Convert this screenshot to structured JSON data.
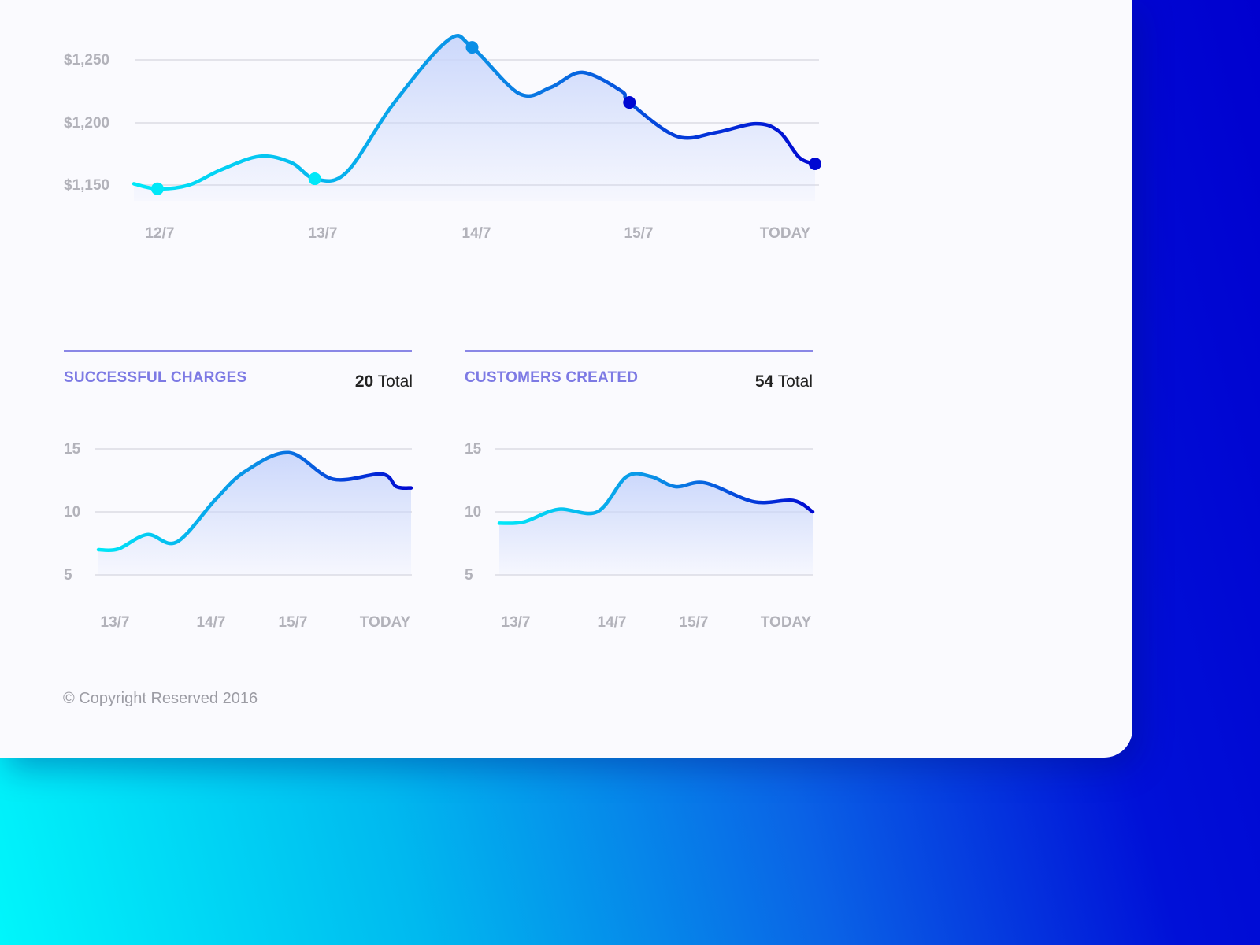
{
  "colors": {
    "line_start": "#00e8f8",
    "line_mid": "#0a8ee6",
    "line_end": "#0008d2",
    "area_fill": "#c9d6fb",
    "gridline": "#e3e3ea",
    "panel_title": "#7d7ae4",
    "page_gradient_start": "#00f6fb",
    "page_gradient_end": "#0000cf"
  },
  "main_chart": {
    "y_tick_labels": [
      "$1,250",
      "$1,200",
      "$1,150"
    ]
  },
  "panels": [
    {
      "title": "SUCCESSFUL CHARGES",
      "total_value": "20",
      "total_label": "Total"
    },
    {
      "title": "CUSTOMERS CREATED",
      "total_value": "54",
      "total_label": "Total"
    }
  ],
  "footer": {
    "copyright": "© Copyright Reserved 2016"
  },
  "chart_data": [
    {
      "type": "area",
      "title": "",
      "xlabel": "",
      "ylabel": "",
      "x_ticks": [
        {
          "x": 0,
          "label": "12/7"
        },
        {
          "x": 1,
          "label": "13/7"
        },
        {
          "x": 2,
          "label": "14/7"
        },
        {
          "x": 3,
          "label": "15/7"
        },
        {
          "x": 4,
          "label": "TODAY"
        }
      ],
      "y_ticks": [
        1150,
        1200,
        1250
      ],
      "ylim": [
        1150,
        1250
      ],
      "xlim": [
        -0.15,
        4.18
      ],
      "grid": true,
      "legend": "none",
      "series": [
        {
          "points": [
            [
              -0.15,
              1151
            ],
            [
              0,
              1147
            ],
            [
              0.2,
              1150
            ],
            [
              0.4,
              1162
            ],
            [
              0.65,
              1173
            ],
            [
              0.85,
              1168
            ],
            [
              1,
              1155
            ],
            [
              1.2,
              1160
            ],
            [
              1.5,
              1215
            ],
            [
              1.85,
              1266
            ],
            [
              2,
              1260
            ],
            [
              2.3,
              1223
            ],
            [
              2.5,
              1228
            ],
            [
              2.7,
              1240
            ],
            [
              2.95,
              1225
            ],
            [
              3,
              1216
            ],
            [
              3.3,
              1189
            ],
            [
              3.55,
              1192
            ],
            [
              3.8,
              1199
            ],
            [
              3.95,
              1193
            ],
            [
              4.08,
              1172
            ],
            [
              4.18,
              1167
            ]
          ],
          "markers": [
            [
              0,
              1147
            ],
            [
              1,
              1155
            ],
            [
              2,
              1260
            ],
            [
              3,
              1216
            ],
            [
              4.18,
              1167
            ]
          ]
        }
      ]
    },
    {
      "type": "area",
      "title": "SUCCESSFUL CHARGES",
      "xlabel": "",
      "ylabel": "",
      "x_ticks": [
        {
          "x": 0,
          "label": "13/7"
        },
        {
          "x": 1,
          "label": "14/7"
        },
        {
          "x": 2,
          "label": "15/7"
        },
        {
          "x": 3,
          "label": "TODAY"
        }
      ],
      "y_ticks": [
        5,
        10,
        15
      ],
      "ylim": [
        5,
        15
      ],
      "xlim": [
        0,
        3.2
      ],
      "grid": true,
      "legend": "none",
      "series": [
        {
          "points": [
            [
              0,
              7
            ],
            [
              0.2,
              7.05
            ],
            [
              0.5,
              8.2
            ],
            [
              0.8,
              7.6
            ],
            [
              1.2,
              11
            ],
            [
              1.5,
              13.2
            ],
            [
              1.95,
              14.7
            ],
            [
              2.4,
              12.6
            ],
            [
              2.9,
              13
            ],
            [
              3.05,
              12
            ],
            [
              3.2,
              11.9
            ]
          ],
          "markers": []
        }
      ]
    },
    {
      "type": "area",
      "title": "CUSTOMERS CREATED",
      "xlabel": "",
      "ylabel": "",
      "x_ticks": [
        {
          "x": 0,
          "label": "13/7"
        },
        {
          "x": 1,
          "label": "14/7"
        },
        {
          "x": 2,
          "label": "15/7"
        },
        {
          "x": 3,
          "label": "TODAY"
        }
      ],
      "y_ticks": [
        5,
        10,
        15
      ],
      "ylim": [
        5,
        15
      ],
      "xlim": [
        0,
        3.2
      ],
      "grid": true,
      "legend": "none",
      "series": [
        {
          "points": [
            [
              0,
              9.1
            ],
            [
              0.25,
              9.2
            ],
            [
              0.6,
              10.2
            ],
            [
              1,
              10
            ],
            [
              1.3,
              12.8
            ],
            [
              1.55,
              12.8
            ],
            [
              1.8,
              12
            ],
            [
              2.1,
              12.3
            ],
            [
              2.6,
              10.8
            ],
            [
              3.0,
              10.9
            ],
            [
              3.2,
              10
            ]
          ],
          "markers": []
        }
      ]
    }
  ]
}
